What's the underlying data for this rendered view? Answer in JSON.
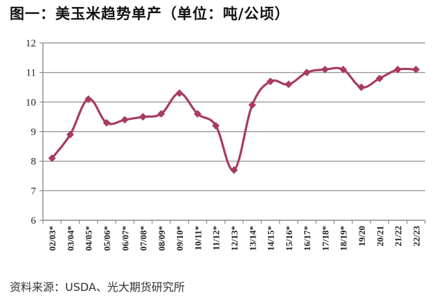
{
  "header": {
    "title": "图一：美玉米趋势单产（单位：吨/公顷）"
  },
  "footer": {
    "source": "资料来源：USDA、光大期货研究所"
  },
  "colors": {
    "series": "#A83A63",
    "grid": "#9a9a9a",
    "axis": "#8a8a8a",
    "text": "#222222"
  },
  "chart_data": {
    "type": "line",
    "title": "图一：美玉米趋势单产（单位：吨/公顷）",
    "xlabel": "",
    "ylabel": "吨/公顷",
    "ylim": [
      6,
      12
    ],
    "yticks": [
      6,
      7,
      8,
      9,
      10,
      11,
      12
    ],
    "grid": true,
    "legend": null,
    "categories": [
      "02/03*",
      "03/04*",
      "04/05*",
      "05/06*",
      "06/07*",
      "07/08*",
      "08/09*",
      "09/10*",
      "10/11*",
      "11/12*",
      "12/13*",
      "13/14*",
      "14/15*",
      "15/16*",
      "16/17*",
      "17/18*",
      "18/19*",
      "19/20",
      "20/21",
      "21/22",
      "22/23"
    ],
    "series": [
      {
        "name": "美玉米趋势单产",
        "values": [
          8.1,
          8.9,
          10.1,
          9.3,
          9.4,
          9.5,
          9.6,
          10.3,
          9.6,
          9.2,
          7.7,
          9.9,
          10.7,
          10.6,
          11.0,
          11.1,
          11.1,
          10.5,
          10.8,
          11.1,
          11.1
        ]
      }
    ]
  }
}
